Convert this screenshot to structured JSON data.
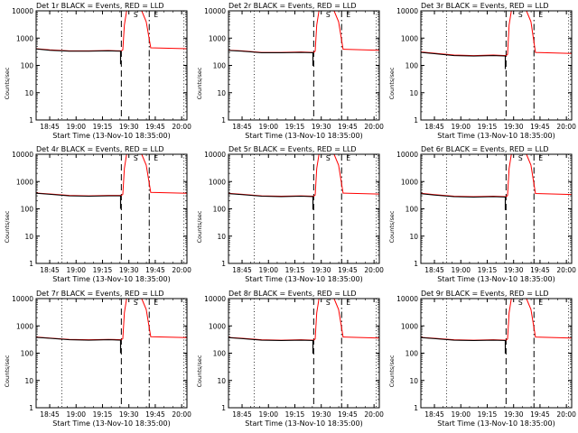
{
  "chart_data": [
    {
      "type": "line",
      "title": "Det 1r BLACK = Events, RED = LLD",
      "xlabel": "Start Time (13-Nov-10 18:35:00)",
      "ylabel": "Counts/sec",
      "xticks": [
        "18:45",
        "19:00",
        "19:15",
        "19:30",
        "19:45",
        "20:00"
      ],
      "yticks": [
        "1",
        "10",
        "100",
        "1000",
        "10000"
      ],
      "ylim": [
        1,
        10000
      ],
      "yscale": "log",
      "markers": [
        "S",
        "E"
      ],
      "series": [
        {
          "name": "Events",
          "color": "#000000",
          "x": [
            0,
            1,
            2,
            3,
            4,
            5
          ],
          "y": [
            400,
            360,
            330,
            330,
            340,
            330
          ]
        },
        {
          "name": "LLD",
          "color": "#ff0000",
          "x": [
            0,
            1,
            2,
            3,
            4,
            5
          ],
          "y": [
            410,
            370,
            340,
            340,
            350,
            340
          ]
        }
      ]
    },
    {
      "type": "line",
      "title": "Det 2r BLACK = Events, RED = LLD",
      "xlabel": "Start Time (13-Nov-10 18:35:00)",
      "ylabel": "Counts/sec",
      "xticks": [
        "18:45",
        "19:00",
        "19:15",
        "19:30",
        "19:45",
        "20:00"
      ],
      "yticks": [
        "1",
        "10",
        "100",
        "1000",
        "10000"
      ],
      "ylim": [
        1,
        10000
      ],
      "yscale": "log",
      "markers": [
        "S",
        "E"
      ],
      "series": [
        {
          "name": "Events",
          "color": "#000000",
          "x": [
            0,
            1,
            2,
            3,
            4,
            5
          ],
          "y": [
            350,
            330,
            290,
            290,
            300,
            290
          ]
        },
        {
          "name": "LLD",
          "color": "#ff0000",
          "x": [
            0,
            1,
            2,
            3,
            4,
            5
          ],
          "y": [
            360,
            340,
            300,
            300,
            310,
            300
          ]
        }
      ]
    },
    {
      "type": "line",
      "title": "Det 3r BLACK = Events, RED = LLD",
      "xlabel": "Start Time (13-Nov-10 18:35:00)",
      "ylabel": "Counts/sec",
      "xticks": [
        "18:45",
        "19:00",
        "19:15",
        "19:30",
        "19:45",
        "20:00"
      ],
      "yticks": [
        "1",
        "10",
        "100",
        "1000",
        "10000"
      ],
      "ylim": [
        1,
        10000
      ],
      "yscale": "log",
      "markers": [
        "S",
        "E"
      ],
      "series": [
        {
          "name": "Events",
          "color": "#000000",
          "x": [
            0,
            1,
            2,
            3,
            4,
            5
          ],
          "y": [
            300,
            270,
            230,
            220,
            230,
            220
          ]
        },
        {
          "name": "LLD",
          "color": "#ff0000",
          "x": [
            0,
            1,
            2,
            3,
            4,
            5
          ],
          "y": [
            310,
            280,
            240,
            230,
            240,
            230
          ]
        }
      ]
    },
    {
      "type": "line",
      "title": "Det 4r BLACK = Events, RED = LLD",
      "xlabel": "Start Time (13-Nov-10 18:35:00)",
      "ylabel": "Counts/sec",
      "xticks": [
        "18:45",
        "19:00",
        "19:15",
        "19:30",
        "19:45",
        "20:00"
      ],
      "yticks": [
        "1",
        "10",
        "100",
        "1000",
        "10000"
      ],
      "ylim": [
        1,
        10000
      ],
      "yscale": "log",
      "markers": [
        "S",
        "E"
      ],
      "series": [
        {
          "name": "Events",
          "color": "#000000",
          "x": [
            0,
            1,
            2,
            3,
            4,
            5
          ],
          "y": [
            370,
            340,
            300,
            290,
            300,
            300
          ]
        },
        {
          "name": "LLD",
          "color": "#ff0000",
          "x": [
            0,
            1,
            2,
            3,
            4,
            5
          ],
          "y": [
            380,
            350,
            310,
            300,
            310,
            310
          ]
        }
      ]
    },
    {
      "type": "line",
      "title": "Det 5r BLACK = Events, RED = LLD",
      "xlabel": "Start Time (13-Nov-10 18:35:00)",
      "ylabel": "Counts/sec",
      "xticks": [
        "18:45",
        "19:00",
        "19:15",
        "19:30",
        "19:45",
        "20:00"
      ],
      "yticks": [
        "1",
        "10",
        "100",
        "1000",
        "10000"
      ],
      "ylim": [
        1,
        10000
      ],
      "yscale": "log",
      "markers": [
        "S",
        "E"
      ],
      "series": [
        {
          "name": "Events",
          "color": "#000000",
          "x": [
            0,
            1,
            2,
            3,
            4,
            5
          ],
          "y": [
            360,
            330,
            290,
            280,
            290,
            280
          ]
        },
        {
          "name": "LLD",
          "color": "#ff0000",
          "x": [
            0,
            1,
            2,
            3,
            4,
            5
          ],
          "y": [
            370,
            340,
            300,
            290,
            300,
            290
          ]
        }
      ]
    },
    {
      "type": "line",
      "title": "Det 6r BLACK = Events, RED = LLD",
      "xlabel": "Start Time (13-Nov-10 18:35:00)",
      "ylabel": "Counts/sec",
      "xticks": [
        "18:45",
        "19:00",
        "19:15",
        "19:30",
        "19:45",
        "20:00"
      ],
      "yticks": [
        "1",
        "10",
        "100",
        "1000",
        "10000"
      ],
      "ylim": [
        1,
        10000
      ],
      "yscale": "log",
      "markers": [
        "S",
        "E"
      ],
      "series": [
        {
          "name": "Events",
          "color": "#000000",
          "x": [
            0,
            1,
            2,
            3,
            4,
            5
          ],
          "y": [
            360,
            320,
            280,
            270,
            280,
            270
          ]
        },
        {
          "name": "LLD",
          "color": "#ff0000",
          "x": [
            0,
            1,
            2,
            3,
            4,
            5
          ],
          "y": [
            370,
            330,
            290,
            280,
            290,
            280
          ]
        }
      ]
    },
    {
      "type": "line",
      "title": "Det 7r BLACK = Events, RED = LLD",
      "xlabel": "Start Time (13-Nov-10 18:35:00)",
      "ylabel": "Counts/sec",
      "xticks": [
        "18:45",
        "19:00",
        "19:15",
        "19:30",
        "19:45",
        "20:00"
      ],
      "yticks": [
        "1",
        "10",
        "100",
        "1000",
        "10000"
      ],
      "ylim": [
        1,
        10000
      ],
      "yscale": "log",
      "markers": [
        "S",
        "E"
      ],
      "series": [
        {
          "name": "Events",
          "color": "#000000",
          "x": [
            0,
            1,
            2,
            3,
            4,
            5
          ],
          "y": [
            380,
            350,
            310,
            300,
            310,
            300
          ]
        },
        {
          "name": "LLD",
          "color": "#ff0000",
          "x": [
            0,
            1,
            2,
            3,
            4,
            5
          ],
          "y": [
            390,
            360,
            320,
            310,
            320,
            310
          ]
        }
      ]
    },
    {
      "type": "line",
      "title": "Det 8r BLACK = Events, RED = LLD",
      "xlabel": "Start Time (13-Nov-10 18:35:00)",
      "ylabel": "Counts/sec",
      "xticks": [
        "18:45",
        "19:00",
        "19:15",
        "19:30",
        "19:45",
        "20:00"
      ],
      "yticks": [
        "1",
        "10",
        "100",
        "1000",
        "10000"
      ],
      "ylim": [
        1,
        10000
      ],
      "yscale": "log",
      "markers": [
        "S",
        "E"
      ],
      "series": [
        {
          "name": "Events",
          "color": "#000000",
          "x": [
            0,
            1,
            2,
            3,
            4,
            5
          ],
          "y": [
            370,
            340,
            300,
            290,
            300,
            290
          ]
        },
        {
          "name": "LLD",
          "color": "#ff0000",
          "x": [
            0,
            1,
            2,
            3,
            4,
            5
          ],
          "y": [
            380,
            350,
            310,
            300,
            310,
            300
          ]
        }
      ]
    },
    {
      "type": "line",
      "title": "Det 9r BLACK = Events, RED = LLD",
      "xlabel": "Start Time (13-Nov-10 18:35:00)",
      "ylabel": "Counts/sec",
      "xticks": [
        "18:45",
        "19:00",
        "19:15",
        "19:30",
        "19:45",
        "20:00"
      ],
      "yticks": [
        "1",
        "10",
        "100",
        "1000",
        "10000"
      ],
      "ylim": [
        1,
        10000
      ],
      "yscale": "log",
      "markers": [
        "S",
        "E"
      ],
      "series": [
        {
          "name": "Events",
          "color": "#000000",
          "x": [
            0,
            1,
            2,
            3,
            4,
            5
          ],
          "y": [
            370,
            340,
            300,
            290,
            300,
            290
          ]
        },
        {
          "name": "LLD",
          "color": "#ff0000",
          "x": [
            0,
            1,
            2,
            3,
            4,
            5
          ],
          "y": [
            380,
            350,
            310,
            300,
            310,
            300
          ]
        }
      ]
    }
  ]
}
